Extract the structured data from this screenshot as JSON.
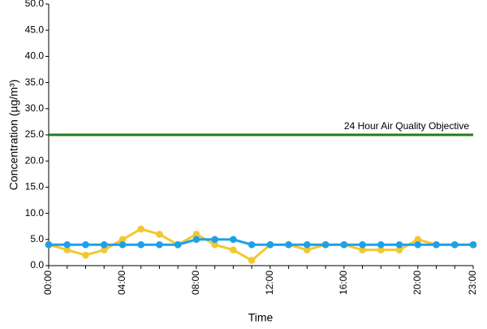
{
  "chart_data": {
    "type": "line",
    "x_label": "Time",
    "y_label": "Concentration (µg/m³)",
    "categories": [
      "00:00",
      null,
      null,
      null,
      "04:00",
      null,
      null,
      null,
      "08:00",
      null,
      null,
      null,
      "12:00",
      null,
      null,
      null,
      "16:00",
      null,
      null,
      null,
      "20:00",
      null,
      null,
      "23:00"
    ],
    "series": [
      {
        "color": "#f2c830",
        "values": [
          4,
          3,
          2,
          3,
          5,
          7,
          6,
          4,
          6,
          4,
          3,
          1,
          4,
          4,
          3,
          4,
          4,
          3,
          3,
          3,
          5,
          4,
          4,
          4
        ]
      },
      {
        "color": "#1ea0e8",
        "values": [
          4,
          4,
          4,
          4,
          4,
          4,
          4,
          4,
          5,
          5,
          5,
          4,
          4,
          4,
          4,
          4,
          4,
          4,
          4,
          4,
          4,
          4,
          4,
          4
        ]
      }
    ],
    "reference_line": {
      "value": 25,
      "label": "24 Hour Air Quality Objective",
      "color": "#1e7d1e"
    },
    "ylim": [
      0,
      50
    ],
    "yticks": [
      {
        "value": 0,
        "label": "0.0"
      },
      {
        "value": 5,
        "label": "5.0"
      },
      {
        "value": 10,
        "label": "10.0"
      },
      {
        "value": 15,
        "label": "15.0"
      },
      {
        "value": 20,
        "label": "20.0"
      },
      {
        "value": 25,
        "label": "25.0"
      },
      {
        "value": 30,
        "label": "30.0"
      },
      {
        "value": 35,
        "label": "35.0"
      },
      {
        "value": 40,
        "label": "40.0"
      },
      {
        "value": 45,
        "label": "45.0"
      },
      {
        "value": 50,
        "label": "50.0"
      }
    ],
    "grid": false
  }
}
